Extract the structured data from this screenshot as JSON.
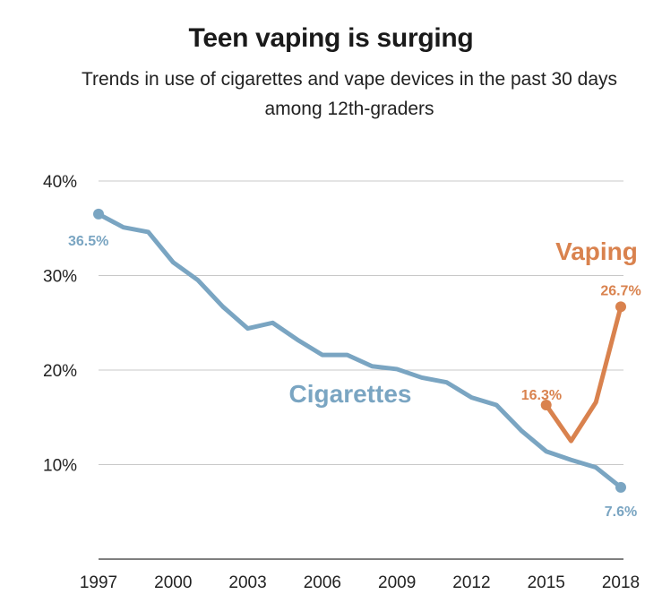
{
  "chart_data": {
    "type": "line",
    "title": "Teen vaping is surging",
    "subtitle": "Trends in use of cigarettes and vape devices in the past 30 days among 12th-graders",
    "xlabel": "",
    "ylabel": "",
    "xlim": [
      1997,
      2018
    ],
    "ylim": [
      0,
      40
    ],
    "x_ticks": [
      1997,
      2000,
      2003,
      2006,
      2009,
      2012,
      2015,
      2018
    ],
    "x_tick_labels": [
      "1997",
      "2000",
      "2003",
      "2006",
      "2009",
      "2012",
      "2015",
      "2018"
    ],
    "y_ticks": [
      10,
      20,
      30,
      40
    ],
    "y_tick_labels": [
      "10%",
      "20%",
      "30%",
      "40%"
    ],
    "grid": true,
    "series": [
      {
        "name": "Cigarettes",
        "color": "#7aa5c2",
        "x": [
          1997,
          1998,
          1999,
          2000,
          2001,
          2002,
          2003,
          2004,
          2005,
          2006,
          2007,
          2008,
          2009,
          2010,
          2011,
          2012,
          2013,
          2014,
          2015,
          2016,
          2017,
          2018
        ],
        "values": [
          36.5,
          35.1,
          34.6,
          31.4,
          29.5,
          26.7,
          24.4,
          25.0,
          23.2,
          21.6,
          21.6,
          20.4,
          20.1,
          19.2,
          18.7,
          17.1,
          16.3,
          13.6,
          11.4,
          10.5,
          9.7,
          7.6
        ],
        "point_labels": [
          {
            "x": 1997,
            "value": 36.5,
            "text": "36.5%"
          },
          {
            "x": 2018,
            "value": 7.6,
            "text": "7.6%"
          }
        ]
      },
      {
        "name": "Vaping",
        "color": "#d9824e",
        "x": [
          2015,
          2016,
          2017,
          2018
        ],
        "values": [
          16.3,
          12.5,
          16.6,
          26.7
        ],
        "point_labels": [
          {
            "x": 2015,
            "value": 16.3,
            "text": "16.3%"
          },
          {
            "x": 2018,
            "value": 26.7,
            "text": "26.7%"
          }
        ]
      }
    ]
  }
}
